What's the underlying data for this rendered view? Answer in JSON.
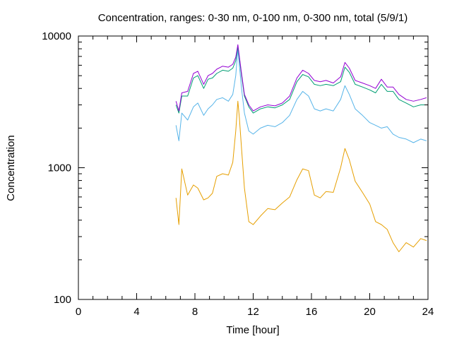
{
  "chart_data": {
    "type": "line",
    "title": "Concentration, ranges: 0-30 nm, 0-100 nm, 0-300 nm, total (5/9/1)",
    "xlabel": "Time [hour]",
    "ylabel": "Concentration",
    "xlim": [
      0,
      24
    ],
    "ylim": [
      100,
      10000
    ],
    "yscale": "log",
    "grid": false,
    "legend": "none",
    "x_ticks": [
      0,
      4,
      8,
      12,
      16,
      20,
      24
    ],
    "x_tick_labels": [
      "0",
      "4",
      "8",
      "12",
      "16",
      "20",
      "24"
    ],
    "y_ticks": [
      100,
      1000,
      10000
    ],
    "y_tick_labels": [
      "100",
      "1000",
      "10000"
    ],
    "x": [
      6.7,
      6.9,
      7.1,
      7.5,
      7.9,
      8.2,
      8.6,
      8.9,
      9.2,
      9.5,
      9.9,
      10.3,
      10.6,
      10.8,
      10.95,
      11.05,
      11.2,
      11.4,
      11.7,
      12.0,
      12.5,
      13.0,
      13.5,
      14.0,
      14.5,
      15.0,
      15.4,
      15.8,
      16.2,
      16.6,
      17.0,
      17.5,
      18.0,
      18.3,
      18.6,
      19.0,
      19.5,
      20.0,
      20.4,
      20.8,
      21.2,
      21.6,
      22.0,
      22.5,
      23.0,
      23.5,
      23.9
    ],
    "series": [
      {
        "color": "#e69f00",
        "values": [
          590,
          370,
          980,
          620,
          740,
          700,
          570,
          590,
          640,
          860,
          900,
          880,
          1100,
          1900,
          3200,
          2400,
          1400,
          700,
          390,
          370,
          430,
          490,
          480,
          540,
          600,
          810,
          980,
          950,
          620,
          590,
          660,
          650,
          1000,
          1400,
          1150,
          790,
          650,
          530,
          390,
          370,
          340,
          270,
          230,
          270,
          250,
          290,
          280
        ]
      },
      {
        "color": "#56b4e9",
        "values": [
          2100,
          1600,
          2600,
          2300,
          2900,
          3100,
          2500,
          2800,
          3000,
          3300,
          3400,
          3200,
          3600,
          5000,
          8000,
          6000,
          4000,
          2600,
          1900,
          1800,
          2000,
          2100,
          2050,
          2200,
          2500,
          3300,
          3800,
          3500,
          2800,
          2700,
          2800,
          2700,
          3300,
          4200,
          3600,
          2800,
          2500,
          2200,
          2100,
          2000,
          2050,
          1800,
          1700,
          1650,
          1550,
          1650,
          1600
        ]
      },
      {
        "color": "#009e73",
        "values": [
          3000,
          2600,
          3500,
          3500,
          4800,
          5000,
          4000,
          4700,
          4800,
          5200,
          5500,
          5400,
          5700,
          6500,
          8300,
          6800,
          5000,
          3500,
          2900,
          2600,
          2800,
          2900,
          2850,
          3000,
          3300,
          4500,
          5100,
          4900,
          4300,
          4200,
          4300,
          4200,
          4500,
          5800,
          5300,
          4300,
          4100,
          3900,
          3700,
          4300,
          3800,
          3800,
          3300,
          3100,
          2900,
          3000,
          3000
        ]
      },
      {
        "color": "#9400d3",
        "values": [
          3200,
          2700,
          3700,
          3800,
          5200,
          5400,
          4300,
          5000,
          5200,
          5600,
          5900,
          5800,
          6100,
          6900,
          8600,
          7000,
          5200,
          3600,
          3000,
          2700,
          2900,
          3000,
          2950,
          3100,
          3500,
          4800,
          5500,
          5200,
          4600,
          4500,
          4600,
          4400,
          4900,
          6300,
          5700,
          4600,
          4400,
          4200,
          4000,
          4700,
          4100,
          4100,
          3600,
          3300,
          3200,
          3300,
          3400
        ]
      }
    ]
  }
}
